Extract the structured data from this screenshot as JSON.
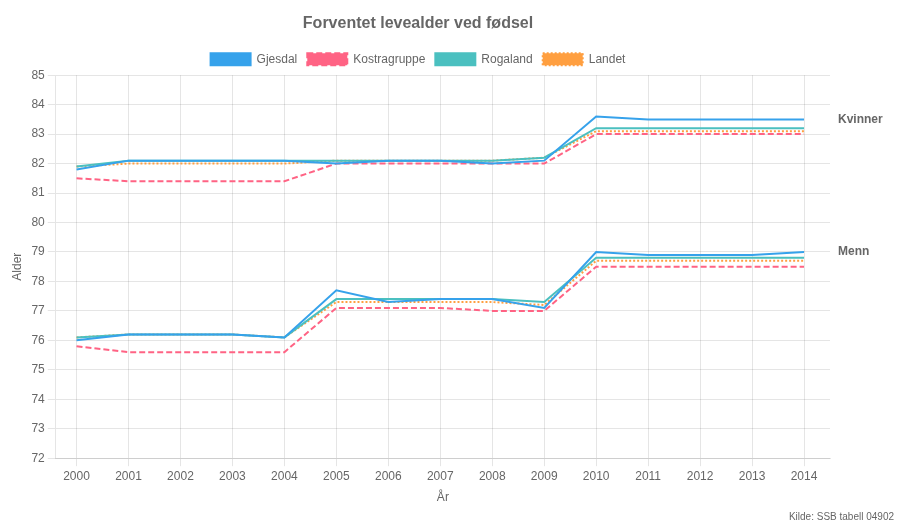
{
  "chart_data": {
    "type": "line",
    "title": "Forventet levealder ved fødsel",
    "xlabel": "År",
    "ylabel": "Alder",
    "source": "Kilde: SSB tabell 04902",
    "x": [
      2000,
      2001,
      2002,
      2003,
      2004,
      2005,
      2006,
      2007,
      2008,
      2009,
      2010,
      2011,
      2012,
      2013,
      2014
    ],
    "xlim": [
      1999.6,
      2014.5
    ],
    "xticks": [
      2000,
      2001,
      2002,
      2003,
      2004,
      2005,
      2006,
      2007,
      2008,
      2009,
      2010,
      2011,
      2012,
      2013,
      2014
    ],
    "ylim": [
      72,
      85
    ],
    "yticks": [
      72,
      73,
      74,
      75,
      76,
      77,
      78,
      79,
      80,
      81,
      82,
      83,
      84,
      85
    ],
    "grid": true,
    "series": [
      {
        "name": "Gjesdal",
        "line_style": "solid",
        "kvinner": [
          81.8,
          82.1,
          82.1,
          82.1,
          82.1,
          82.0,
          82.1,
          82.1,
          82.0,
          82.1,
          83.6,
          83.5,
          83.5,
          83.5,
          83.5
        ],
        "menn": [
          76.0,
          76.2,
          76.2,
          76.2,
          76.1,
          77.7,
          77.3,
          77.4,
          77.4,
          77.1,
          79.0,
          78.9,
          78.9,
          78.9,
          79.0
        ]
      },
      {
        "name": "Kostragruppe",
        "line_style": "dashed",
        "kvinner": [
          81.5,
          81.4,
          81.4,
          81.4,
          81.4,
          82.0,
          82.0,
          82.0,
          82.0,
          82.0,
          83.0,
          83.0,
          83.0,
          83.0,
          83.0
        ],
        "menn": [
          75.8,
          75.6,
          75.6,
          75.6,
          75.6,
          77.1,
          77.1,
          77.1,
          77.0,
          77.0,
          78.5,
          78.5,
          78.5,
          78.5,
          78.5
        ]
      },
      {
        "name": "Rogaland",
        "line_style": "solid",
        "kvinner": [
          81.9,
          82.1,
          82.1,
          82.1,
          82.1,
          82.1,
          82.1,
          82.1,
          82.1,
          82.2,
          83.2,
          83.2,
          83.2,
          83.2,
          83.2
        ],
        "menn": [
          76.1,
          76.2,
          76.2,
          76.2,
          76.1,
          77.4,
          77.4,
          77.4,
          77.4,
          77.3,
          78.8,
          78.8,
          78.8,
          78.8,
          78.8
        ]
      },
      {
        "name": "Landet",
        "line_style": "dotted",
        "kvinner": [
          81.9,
          82.0,
          82.0,
          82.0,
          82.0,
          82.1,
          82.1,
          82.1,
          82.1,
          82.2,
          83.1,
          83.1,
          83.1,
          83.1,
          83.1
        ],
        "menn": [
          76.1,
          76.2,
          76.2,
          76.2,
          76.1,
          77.3,
          77.3,
          77.3,
          77.3,
          77.2,
          78.7,
          78.7,
          78.7,
          78.7,
          78.7
        ]
      }
    ],
    "annotations": [
      {
        "text": "Kvinner",
        "y": 83.5
      },
      {
        "text": "Menn",
        "y": 79.0
      }
    ]
  }
}
